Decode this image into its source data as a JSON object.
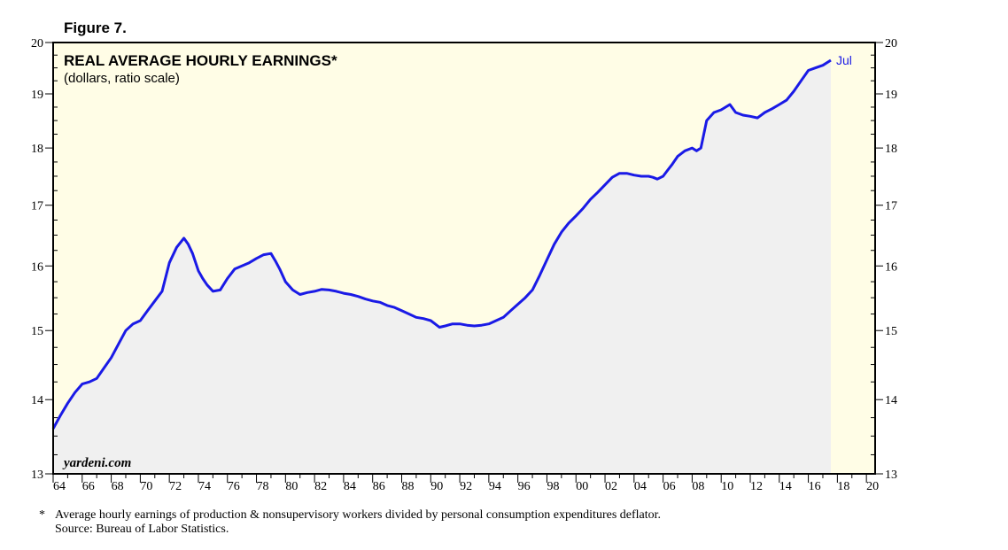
{
  "figure_label": "Figure 7.",
  "footnote": {
    "marker": "*",
    "text": "Average hourly earnings of production & nonsupervisory workers divided by personal consumption expenditures deflator.",
    "source": "Source: Bureau of Labor Statistics."
  },
  "colors": {
    "plot_background": "#fffde6",
    "area_fill": "#f0f0f0",
    "line": "#1a1ae6",
    "last_label": "#1a1ae6"
  },
  "chart_data": {
    "type": "area",
    "title": "REAL AVERAGE HOURLY EARNINGS*",
    "subtitle": "(dollars, ratio scale)",
    "watermark": "yardeni.com",
    "scale": "log",
    "xlim": [
      1964,
      2020.6
    ],
    "ylim": [
      13,
      20
    ],
    "y_ticks": [
      "13",
      "14",
      "15",
      "16",
      "17",
      "18",
      "19",
      "20"
    ],
    "x_ticks": [
      "64",
      "66",
      "68",
      "70",
      "72",
      "74",
      "76",
      "78",
      "80",
      "82",
      "84",
      "86",
      "88",
      "90",
      "92",
      "94",
      "96",
      "98",
      "00",
      "02",
      "04",
      "06",
      "08",
      "10",
      "12",
      "14",
      "16",
      "18",
      "20"
    ],
    "last_point_label": "Jul",
    "data_end": 2017.55,
    "series": [
      {
        "x": [
          1964.0,
          1964.5,
          1965.0,
          1965.5,
          1966.0,
          1966.5,
          1967.0,
          1967.5,
          1968.0,
          1968.5,
          1969.0,
          1969.5,
          1970.0,
          1970.5,
          1971.0,
          1971.5,
          1972.0,
          1972.5,
          1973.0,
          1973.3,
          1973.6,
          1974.0,
          1974.3,
          1974.6,
          1975.0,
          1975.5,
          1976.0,
          1976.5,
          1977.0,
          1977.5,
          1978.0,
          1978.5,
          1979.0,
          1979.3,
          1979.6,
          1980.0,
          1980.5,
          1981.0,
          1981.5,
          1982.0,
          1982.5,
          1983.0,
          1983.5,
          1984.0,
          1984.5,
          1985.0,
          1985.5,
          1986.0,
          1986.5,
          1987.0,
          1987.5,
          1988.0,
          1988.5,
          1989.0,
          1989.5,
          1990.0,
          1990.3,
          1990.6,
          1991.0,
          1991.5,
          1992.0,
          1992.5,
          1993.0,
          1993.5,
          1994.0,
          1994.5,
          1995.0,
          1995.5,
          1996.0,
          1996.5,
          1997.0,
          1997.5,
          1998.0,
          1998.5,
          1999.0,
          1999.5,
          2000.0,
          2000.5,
          2001.0,
          2001.5,
          2002.0,
          2002.5,
          2003.0,
          2003.5,
          2004.0,
          2004.5,
          2005.0,
          2005.3,
          2005.6,
          2006.0,
          2006.3,
          2006.6,
          2007.0,
          2007.5,
          2008.0,
          2008.3,
          2008.6,
          2009.0,
          2009.5,
          2010.0,
          2010.3,
          2010.6,
          2011.0,
          2011.5,
          2012.0,
          2012.5,
          2013.0,
          2013.5,
          2014.0,
          2014.5,
          2015.0,
          2015.5,
          2016.0,
          2016.5,
          2017.0,
          2017.55
        ],
        "values": [
          13.6,
          13.78,
          13.95,
          14.1,
          14.22,
          14.25,
          14.3,
          14.45,
          14.6,
          14.8,
          15.0,
          15.1,
          15.15,
          15.3,
          15.45,
          15.6,
          16.05,
          16.3,
          16.45,
          16.35,
          16.2,
          15.92,
          15.8,
          15.7,
          15.6,
          15.62,
          15.8,
          15.95,
          16.0,
          16.05,
          16.12,
          16.18,
          16.2,
          16.08,
          15.95,
          15.75,
          15.62,
          15.55,
          15.58,
          15.6,
          15.63,
          15.62,
          15.6,
          15.57,
          15.55,
          15.52,
          15.48,
          15.45,
          15.43,
          15.38,
          15.35,
          15.3,
          15.25,
          15.2,
          15.18,
          15.15,
          15.1,
          15.05,
          15.07,
          15.1,
          15.1,
          15.08,
          15.07,
          15.08,
          15.1,
          15.15,
          15.2,
          15.3,
          15.4,
          15.5,
          15.62,
          15.85,
          16.1,
          16.35,
          16.55,
          16.7,
          16.82,
          16.95,
          17.1,
          17.22,
          17.35,
          17.48,
          17.55,
          17.55,
          17.52,
          17.5,
          17.5,
          17.48,
          17.45,
          17.5,
          17.6,
          17.7,
          17.85,
          17.95,
          18.0,
          17.95,
          18.0,
          18.5,
          18.65,
          18.7,
          18.75,
          18.8,
          18.65,
          18.6,
          18.58,
          18.55,
          18.65,
          18.72,
          18.8,
          18.88,
          19.05,
          19.25,
          19.45,
          19.5,
          19.55,
          19.65
        ]
      }
    ]
  }
}
